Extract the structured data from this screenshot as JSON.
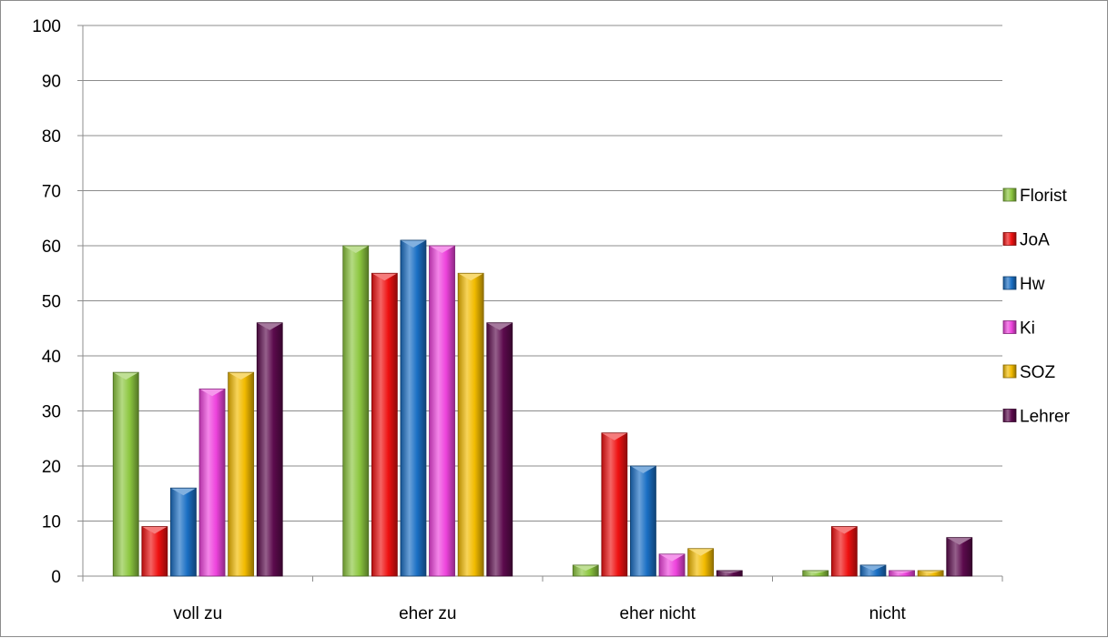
{
  "chart_data": {
    "type": "bar",
    "title": "",
    "xlabel": "",
    "ylabel": "",
    "ylim": [
      0,
      100
    ],
    "yticks": [
      0,
      10,
      20,
      30,
      40,
      50,
      60,
      70,
      80,
      90,
      100
    ],
    "grid": true,
    "legend_position": "right",
    "categories": [
      "voll zu",
      "eher zu",
      "eher nicht",
      "nicht"
    ],
    "series": [
      {
        "name": "Florist",
        "color": "#8cc63f",
        "values": [
          37,
          60,
          2,
          1
        ]
      },
      {
        "name": "JoA",
        "color": "#ee1111",
        "values": [
          9,
          55,
          26,
          9
        ]
      },
      {
        "name": "Hw",
        "color": "#1a6fc4",
        "values": [
          16,
          61,
          20,
          2
        ]
      },
      {
        "name": "Ki",
        "color": "#ee44dd",
        "values": [
          34,
          60,
          4,
          1
        ]
      },
      {
        "name": "SOZ",
        "color": "#f2bb00",
        "values": [
          37,
          55,
          5,
          1
        ]
      },
      {
        "name": "Lehrer",
        "color": "#5c0a4d",
        "values": [
          46,
          46,
          1,
          7
        ]
      }
    ]
  }
}
